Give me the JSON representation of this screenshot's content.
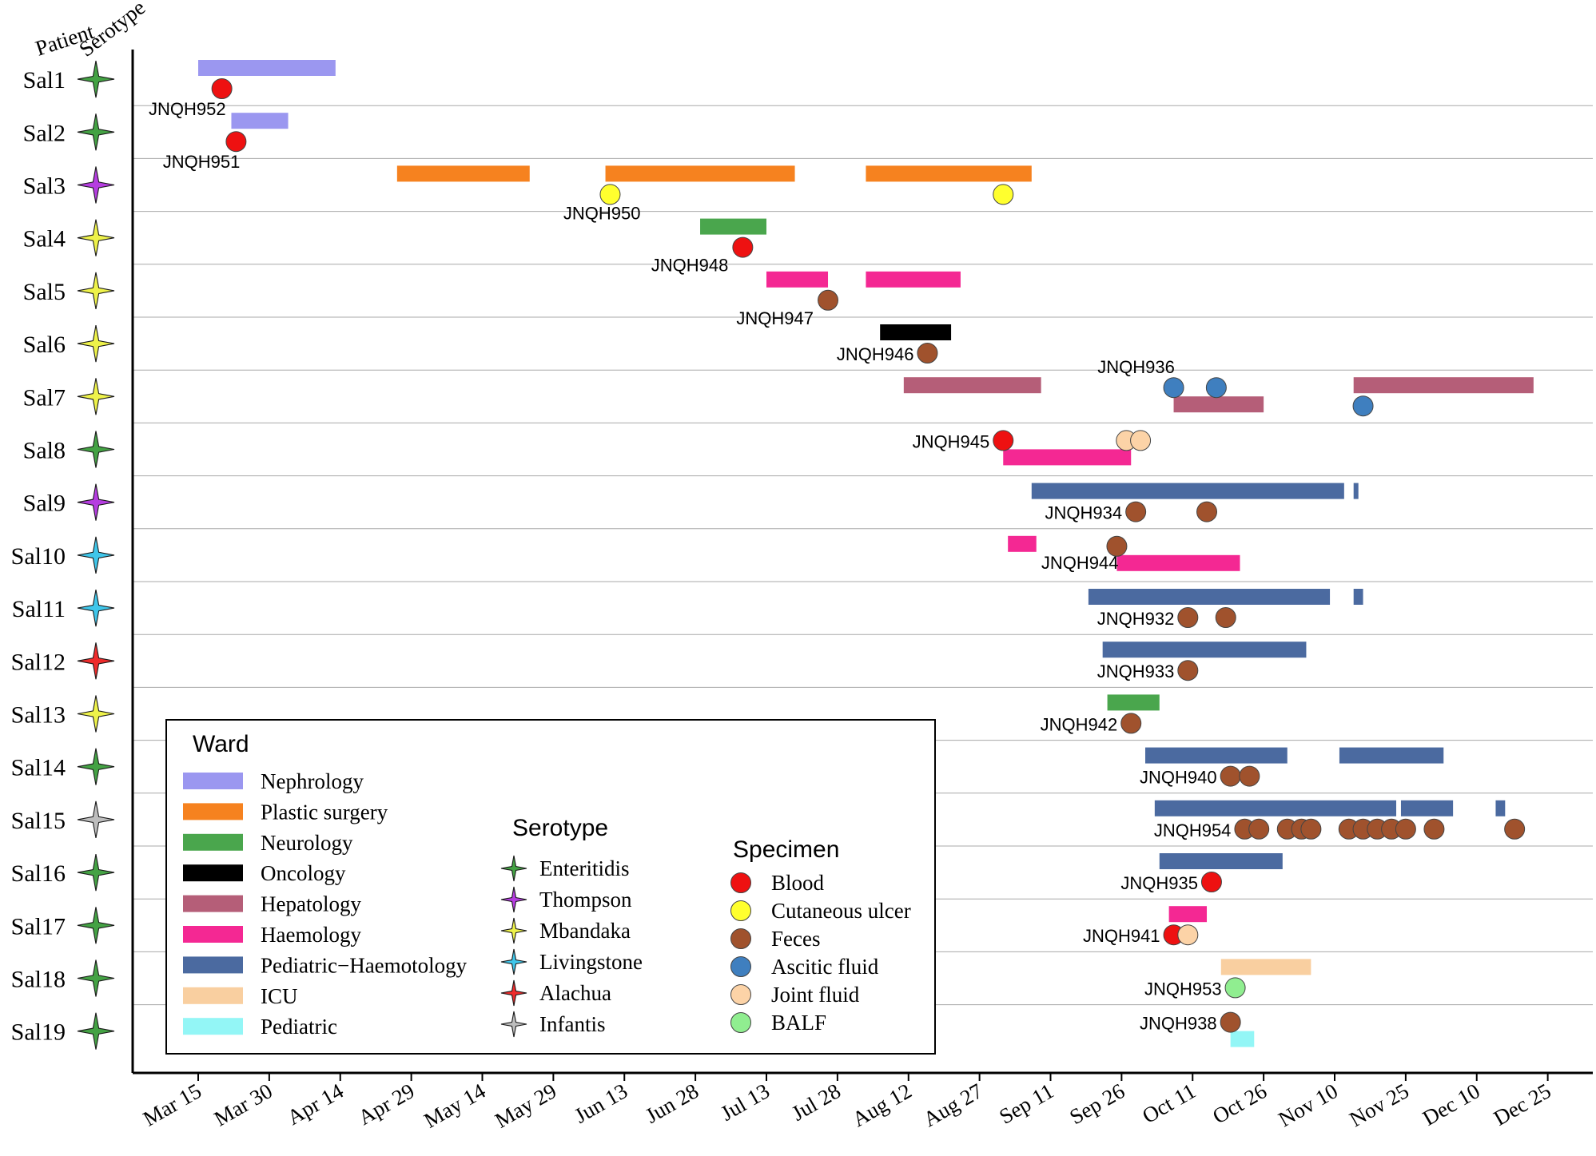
{
  "chart_data": {
    "type": "timeline",
    "header": {
      "patient": "Patient",
      "serotype": "Serotype"
    },
    "x_start": "Mar 15",
    "x_ticks": [
      "Mar 15",
      "Mar 30",
      "Apr 14",
      "Apr 29",
      "May 14",
      "May 29",
      "Jun 13",
      "Jun 28",
      "Jul 13",
      "Jul 28",
      "Aug 12",
      "Aug 27",
      "Sep 11",
      "Sep 26",
      "Oct 11",
      "Oct 26",
      "Nov 10",
      "Nov 25",
      "Dec 10",
      "Dec 25"
    ],
    "wards": [
      {
        "name": "Nephrology",
        "color": "#9b97f0"
      },
      {
        "name": "Plastic surgery",
        "color": "#f6821f"
      },
      {
        "name": "Neurology",
        "color": "#4aa64d"
      },
      {
        "name": "Oncology",
        "color": "#000000"
      },
      {
        "name": "Hepatology",
        "color": "#b55e78"
      },
      {
        "name": "Haemology",
        "color": "#f42893"
      },
      {
        "name": "Pediatric−Haemotology",
        "color": "#4b6aa0"
      },
      {
        "name": "ICU",
        "color": "#f9cfa0"
      },
      {
        "name": "Pediatric",
        "color": "#93f6f6"
      }
    ],
    "serotypes": [
      {
        "name": "Enteritidis",
        "color": "#44a244"
      },
      {
        "name": "Thompson",
        "color": "#b53de0"
      },
      {
        "name": "Mbandaka",
        "color": "#eef24a"
      },
      {
        "name": "Livingstone",
        "color": "#3fc6ea"
      },
      {
        "name": "Alachua",
        "color": "#ee2b2b"
      },
      {
        "name": "Infantis",
        "color": "#bdbdbd"
      }
    ],
    "specimens": [
      {
        "name": "Blood",
        "color": "#ee1111"
      },
      {
        "name": "Cutaneous ulcer",
        "color": "#ffff2e"
      },
      {
        "name": "Feces",
        "color": "#a0522d"
      },
      {
        "name": "Ascitic fluid",
        "color": "#3f7fbf"
      },
      {
        "name": "Joint fluid",
        "color": "#fcd3a7"
      },
      {
        "name": "BALF",
        "color": "#90ee90"
      }
    ],
    "legend_titles": {
      "ward": "Ward",
      "serotype": "Serotype",
      "specimen": "Specimen"
    },
    "patients": [
      {
        "id": "Sal1",
        "serotype": "Enteritidis",
        "label": "JNQH952",
        "stays": [
          {
            "ward": "Nephrology",
            "start": 0,
            "end": 29,
            "lane": 0
          }
        ],
        "samples": [
          {
            "day": 5,
            "specimen": "Blood",
            "lane": 1
          }
        ]
      },
      {
        "id": "Sal2",
        "serotype": "Enteritidis",
        "label": "JNQH951",
        "stays": [
          {
            "ward": "Nephrology",
            "start": 7,
            "end": 19,
            "lane": 0
          }
        ],
        "samples": [
          {
            "day": 8,
            "specimen": "Blood",
            "lane": 1
          }
        ]
      },
      {
        "id": "Sal3",
        "serotype": "Thompson",
        "label": "JNQH950",
        "stays": [
          {
            "ward": "Plastic surgery",
            "start": 42,
            "end": 70,
            "lane": 0
          },
          {
            "ward": "Plastic surgery",
            "start": 86,
            "end": 126,
            "lane": 0
          },
          {
            "ward": "Plastic surgery",
            "start": 141,
            "end": 176,
            "lane": 0
          }
        ],
        "samples": [
          {
            "day": 87,
            "specimen": "Cutaneous ulcer",
            "lane": 1
          },
          {
            "day": 170,
            "specimen": "Cutaneous ulcer",
            "lane": 1
          }
        ]
      },
      {
        "id": "Sal4",
        "serotype": "Mbandaka",
        "label": "JNQH948",
        "stays": [
          {
            "ward": "Neurology",
            "start": 106,
            "end": 120,
            "lane": 0
          }
        ],
        "samples": [
          {
            "day": 115,
            "specimen": "Blood",
            "lane": 1
          }
        ]
      },
      {
        "id": "Sal5",
        "serotype": "Mbandaka",
        "label": "JNQH947",
        "stays": [
          {
            "ward": "Haemology",
            "start": 120,
            "end": 133,
            "lane": 0
          },
          {
            "ward": "Haemology",
            "start": 141,
            "end": 161,
            "lane": 0
          }
        ],
        "samples": [
          {
            "day": 133,
            "specimen": "Feces",
            "lane": 1
          }
        ]
      },
      {
        "id": "Sal6",
        "serotype": "Mbandaka",
        "label": "JNQH946",
        "stays": [
          {
            "ward": "Oncology",
            "start": 144,
            "end": 159,
            "lane": 0
          }
        ],
        "samples": [
          {
            "day": 154,
            "specimen": "Feces",
            "lane": 1
          }
        ]
      },
      {
        "id": "Sal7",
        "serotype": "Mbandaka",
        "label": "JNQH936",
        "stays": [
          {
            "ward": "Hepatology",
            "start": 149,
            "end": 178,
            "lane": 0
          },
          {
            "ward": "Hepatology",
            "start": 206,
            "end": 225,
            "lane": 1
          },
          {
            "ward": "Hepatology",
            "start": 244,
            "end": 282,
            "lane": 0
          }
        ],
        "samples": [
          {
            "day": 206,
            "specimen": "Ascitic fluid",
            "lane": 0
          },
          {
            "day": 215,
            "specimen": "Ascitic fluid",
            "lane": 0
          },
          {
            "day": 246,
            "specimen": "Ascitic fluid",
            "lane": 1
          }
        ]
      },
      {
        "id": "Sal8",
        "serotype": "Enteritidis",
        "label": "JNQH945",
        "stays": [
          {
            "ward": "Haemology",
            "start": 170,
            "end": 197,
            "lane": 1
          }
        ],
        "samples": [
          {
            "day": 170,
            "specimen": "Blood",
            "lane": 0
          },
          {
            "day": 196,
            "specimen": "Joint fluid",
            "lane": 0
          },
          {
            "day": 199,
            "specimen": "Joint fluid",
            "lane": 0
          }
        ]
      },
      {
        "id": "Sal9",
        "serotype": "Thompson",
        "label": "JNQH934",
        "stays": [
          {
            "ward": "Pediatric−Haemotology",
            "start": 176,
            "end": 242,
            "lane": 0
          },
          {
            "ward": "Pediatric−Haemotology",
            "start": 244,
            "end": 245,
            "lane": 0
          }
        ],
        "samples": [
          {
            "day": 198,
            "specimen": "Feces",
            "lane": 1
          },
          {
            "day": 213,
            "specimen": "Feces",
            "lane": 1
          }
        ]
      },
      {
        "id": "Sal10",
        "serotype": "Livingstone",
        "label": "JNQH944",
        "stays": [
          {
            "ward": "Haemology",
            "start": 171,
            "end": 177,
            "lane": 0
          },
          {
            "ward": "Haemology",
            "start": 194,
            "end": 220,
            "lane": 1
          }
        ],
        "samples": [
          {
            "day": 194,
            "specimen": "Feces",
            "lane": 0
          }
        ]
      },
      {
        "id": "Sal11",
        "serotype": "Livingstone",
        "label": "JNQH932",
        "stays": [
          {
            "ward": "Pediatric−Haemotology",
            "start": 188,
            "end": 239,
            "lane": 0
          },
          {
            "ward": "Pediatric−Haemotology",
            "start": 244,
            "end": 246,
            "lane": 0
          }
        ],
        "samples": [
          {
            "day": 209,
            "specimen": "Feces",
            "lane": 1
          },
          {
            "day": 217,
            "specimen": "Feces",
            "lane": 1
          }
        ]
      },
      {
        "id": "Sal12",
        "serotype": "Alachua",
        "label": "JNQH933",
        "stays": [
          {
            "ward": "Pediatric−Haemotology",
            "start": 191,
            "end": 234,
            "lane": 0
          }
        ],
        "samples": [
          {
            "day": 209,
            "specimen": "Feces",
            "lane": 1
          }
        ]
      },
      {
        "id": "Sal13",
        "serotype": "Mbandaka",
        "label": "JNQH942",
        "stays": [
          {
            "ward": "Neurology",
            "start": 192,
            "end": 203,
            "lane": 0
          }
        ],
        "samples": [
          {
            "day": 197,
            "specimen": "Feces",
            "lane": 1
          }
        ]
      },
      {
        "id": "Sal14",
        "serotype": "Enteritidis",
        "label": "JNQH940",
        "stays": [
          {
            "ward": "Pediatric−Haemotology",
            "start": 200,
            "end": 230,
            "lane": 0
          },
          {
            "ward": "Pediatric−Haemotology",
            "start": 241,
            "end": 263,
            "lane": 0
          }
        ],
        "samples": [
          {
            "day": 218,
            "specimen": "Feces",
            "lane": 1
          },
          {
            "day": 222,
            "specimen": "Feces",
            "lane": 1
          }
        ]
      },
      {
        "id": "Sal15",
        "serotype": "Infantis",
        "label": "JNQH954",
        "stays": [
          {
            "ward": "Pediatric−Haemotology",
            "start": 202,
            "end": 253,
            "lane": 0
          },
          {
            "ward": "Pediatric−Haemotology",
            "start": 254,
            "end": 265,
            "lane": 0
          },
          {
            "ward": "Pediatric−Haemotology",
            "start": 274,
            "end": 276,
            "lane": 0
          }
        ],
        "samples": [
          {
            "day": 221,
            "specimen": "Feces",
            "lane": 1
          },
          {
            "day": 224,
            "specimen": "Feces",
            "lane": 1
          },
          {
            "day": 230,
            "specimen": "Feces",
            "lane": 1
          },
          {
            "day": 233,
            "specimen": "Feces",
            "lane": 1
          },
          {
            "day": 235,
            "specimen": "Feces",
            "lane": 1
          },
          {
            "day": 243,
            "specimen": "Feces",
            "lane": 1
          },
          {
            "day": 246,
            "specimen": "Feces",
            "lane": 1
          },
          {
            "day": 249,
            "specimen": "Feces",
            "lane": 1
          },
          {
            "day": 252,
            "specimen": "Feces",
            "lane": 1
          },
          {
            "day": 255,
            "specimen": "Feces",
            "lane": 1
          },
          {
            "day": 261,
            "specimen": "Feces",
            "lane": 1
          },
          {
            "day": 278,
            "specimen": "Feces",
            "lane": 1
          }
        ]
      },
      {
        "id": "Sal16",
        "serotype": "Enteritidis",
        "label": "JNQH935",
        "stays": [
          {
            "ward": "Pediatric−Haemotology",
            "start": 203,
            "end": 229,
            "lane": 0
          }
        ],
        "samples": [
          {
            "day": 214,
            "specimen": "Blood",
            "lane": 1
          }
        ]
      },
      {
        "id": "Sal17",
        "serotype": "Enteritidis",
        "label": "JNQH941",
        "stays": [
          {
            "ward": "Haemology",
            "start": 205,
            "end": 213,
            "lane": 0
          }
        ],
        "samples": [
          {
            "day": 206,
            "specimen": "Blood",
            "lane": 1
          },
          {
            "day": 209,
            "specimen": "Joint fluid",
            "lane": 1
          }
        ]
      },
      {
        "id": "Sal18",
        "serotype": "Enteritidis",
        "label": "JNQH953",
        "stays": [
          {
            "ward": "ICU",
            "start": 216,
            "end": 235,
            "lane": 0
          }
        ],
        "samples": [
          {
            "day": 219,
            "specimen": "BALF",
            "lane": 1
          }
        ]
      },
      {
        "id": "Sal19",
        "serotype": "Enteritidis",
        "label": "JNQH938",
        "stays": [
          {
            "ward": "Pediatric",
            "start": 218,
            "end": 223,
            "lane": 1
          }
        ],
        "samples": [
          {
            "day": 218,
            "specimen": "Feces",
            "lane": 0
          }
        ]
      }
    ]
  }
}
